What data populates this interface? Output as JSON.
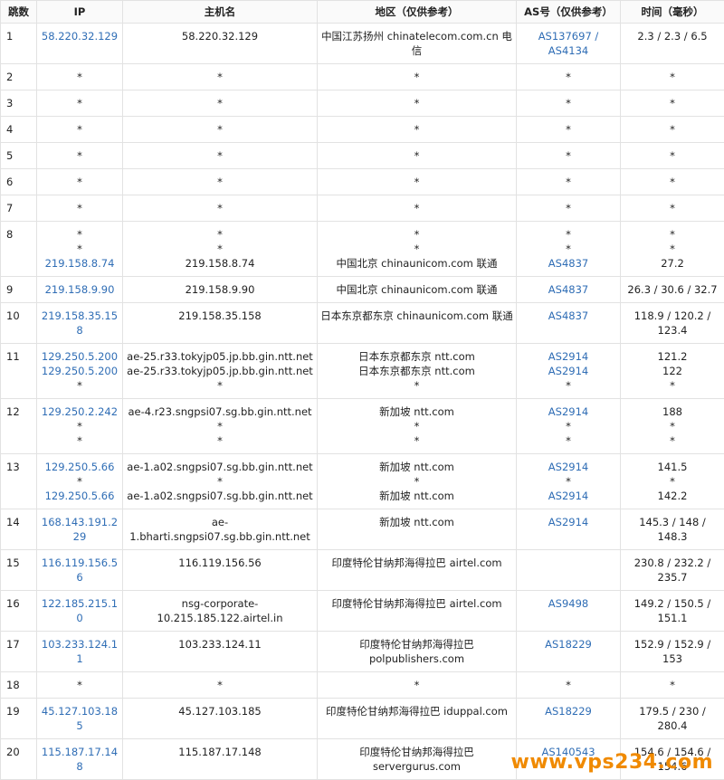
{
  "table": {
    "header": [
      "跳数",
      "IP",
      "主机名",
      "地区（仅供参考）",
      "AS号（仅供参考）",
      "时间（毫秒）"
    ],
    "rows": [
      {
        "hop": "1",
        "ip": [
          "58.220.32.129"
        ],
        "host": [
          "58.220.32.129"
        ],
        "region": [
          "中国江苏扬州 chinatelecom.com.cn 电信"
        ],
        "as": [
          "AS137697 / AS4134"
        ],
        "time": [
          "2.3 / 2.3 / 6.5"
        ]
      },
      {
        "hop": "2",
        "ip": [
          "*"
        ],
        "host": [
          "*"
        ],
        "region": [
          "*"
        ],
        "as": [
          "*"
        ],
        "time": [
          "*"
        ]
      },
      {
        "hop": "3",
        "ip": [
          "*"
        ],
        "host": [
          "*"
        ],
        "region": [
          "*"
        ],
        "as": [
          "*"
        ],
        "time": [
          "*"
        ]
      },
      {
        "hop": "4",
        "ip": [
          "*"
        ],
        "host": [
          "*"
        ],
        "region": [
          "*"
        ],
        "as": [
          "*"
        ],
        "time": [
          "*"
        ]
      },
      {
        "hop": "5",
        "ip": [
          "*"
        ],
        "host": [
          "*"
        ],
        "region": [
          "*"
        ],
        "as": [
          "*"
        ],
        "time": [
          "*"
        ]
      },
      {
        "hop": "6",
        "ip": [
          "*"
        ],
        "host": [
          "*"
        ],
        "region": [
          "*"
        ],
        "as": [
          "*"
        ],
        "time": [
          "*"
        ]
      },
      {
        "hop": "7",
        "ip": [
          "*"
        ],
        "host": [
          "*"
        ],
        "region": [
          "*"
        ],
        "as": [
          "*"
        ],
        "time": [
          "*"
        ]
      },
      {
        "hop": "8",
        "ip": [
          "*",
          "*",
          "219.158.8.74"
        ],
        "host": [
          "*",
          "*",
          "219.158.8.74"
        ],
        "region": [
          "*",
          "*",
          "中国北京 chinaunicom.com 联通"
        ],
        "as": [
          "*",
          "*",
          "AS4837"
        ],
        "time": [
          "*",
          "*",
          "27.2"
        ]
      },
      {
        "hop": "9",
        "ip": [
          "219.158.9.90"
        ],
        "host": [
          "219.158.9.90"
        ],
        "region": [
          "中国北京 chinaunicom.com 联通"
        ],
        "as": [
          "AS4837"
        ],
        "time": [
          "26.3 / 30.6 / 32.7"
        ]
      },
      {
        "hop": "10",
        "ip": [
          "219.158.35.158"
        ],
        "host": [
          "219.158.35.158"
        ],
        "region": [
          "日本东京都东京 chinaunicom.com 联通"
        ],
        "as": [
          "AS4837"
        ],
        "time": [
          "118.9 / 120.2 / 123.4"
        ]
      },
      {
        "hop": "11",
        "ip": [
          "129.250.5.200",
          "129.250.5.200",
          "*"
        ],
        "host": [
          "ae-25.r33.tokyjp05.jp.bb.gin.ntt.net",
          "ae-25.r33.tokyjp05.jp.bb.gin.ntt.net",
          "*"
        ],
        "region": [
          "日本东京都东京 ntt.com",
          "日本东京都东京 ntt.com",
          "*"
        ],
        "as": [
          "AS2914",
          "AS2914",
          "*"
        ],
        "time": [
          "121.2",
          "122",
          "*"
        ]
      },
      {
        "hop": "12",
        "ip": [
          "129.250.2.242",
          "*",
          "*"
        ],
        "host": [
          "ae-4.r23.sngpsi07.sg.bb.gin.ntt.net",
          "*",
          "*"
        ],
        "region": [
          "新加坡 ntt.com",
          "*",
          "*"
        ],
        "as": [
          "AS2914",
          "*",
          "*"
        ],
        "time": [
          "188",
          "*",
          "*"
        ]
      },
      {
        "hop": "13",
        "ip": [
          "129.250.5.66",
          "*",
          "129.250.5.66"
        ],
        "host": [
          "ae-1.a02.sngpsi07.sg.bb.gin.ntt.net",
          "*",
          "ae-1.a02.sngpsi07.sg.bb.gin.ntt.net"
        ],
        "region": [
          "新加坡 ntt.com",
          "*",
          "新加坡 ntt.com"
        ],
        "as": [
          "AS2914",
          "*",
          "AS2914"
        ],
        "time": [
          "141.5",
          "*",
          "142.2"
        ]
      },
      {
        "hop": "14",
        "ip": [
          "168.143.191.229"
        ],
        "host": [
          "ae-1.bharti.sngpsi07.sg.bb.gin.ntt.net"
        ],
        "region": [
          "新加坡 ntt.com"
        ],
        "as": [
          "AS2914"
        ],
        "time": [
          "145.3 / 148 / 148.3"
        ]
      },
      {
        "hop": "15",
        "ip": [
          "116.119.156.56"
        ],
        "host": [
          "116.119.156.56"
        ],
        "region": [
          "印度特伦甘纳邦海得拉巴 airtel.com"
        ],
        "as": [],
        "time": [
          "230.8 / 232.2 / 235.7"
        ]
      },
      {
        "hop": "16",
        "ip": [
          "122.185.215.10"
        ],
        "host": [
          "nsg-corporate-10.215.185.122.airtel.in"
        ],
        "region": [
          "印度特伦甘纳邦海得拉巴 airtel.com"
        ],
        "as": [
          "AS9498"
        ],
        "time": [
          "149.2 / 150.5 / 151.1"
        ]
      },
      {
        "hop": "17",
        "ip": [
          "103.233.124.11"
        ],
        "host": [
          "103.233.124.11"
        ],
        "region": [
          "印度特伦甘纳邦海得拉巴 polpublishers.com"
        ],
        "as": [
          "AS18229"
        ],
        "time": [
          "152.9 / 152.9 / 153"
        ]
      },
      {
        "hop": "18",
        "ip": [
          "*"
        ],
        "host": [
          "*"
        ],
        "region": [
          "*"
        ],
        "as": [
          "*"
        ],
        "time": [
          "*"
        ]
      },
      {
        "hop": "19",
        "ip": [
          "45.127.103.185"
        ],
        "host": [
          "45.127.103.185"
        ],
        "region": [
          "印度特伦甘纳邦海得拉巴 iduppal.com"
        ],
        "as": [
          "AS18229"
        ],
        "time": [
          "179.5 / 230 / 280.4"
        ]
      },
      {
        "hop": "20",
        "ip": [
          "115.187.17.148"
        ],
        "host": [
          "115.187.17.148"
        ],
        "region": [
          "印度特伦甘纳邦海得拉巴 servergurus.com"
        ],
        "as": [
          "AS140543"
        ],
        "time": [
          "154.6 / 154.6 / 154.6"
        ]
      }
    ]
  },
  "watermark": "www.vps234.com"
}
